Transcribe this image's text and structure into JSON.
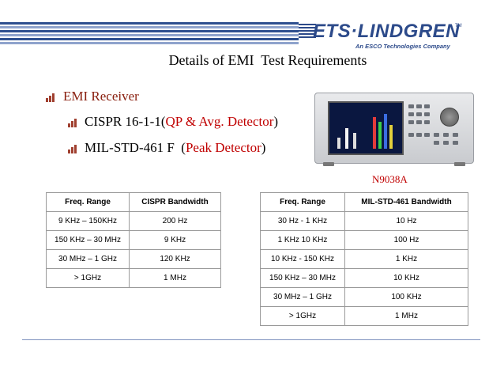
{
  "header": {
    "logo_text": "ETS·LINDGREN",
    "logo_tm": "TM",
    "logo_subtitle": "An ESCO Technologies Company",
    "colors": {
      "brand_blue": "#2c4a8a",
      "accent_red": "#c00000"
    }
  },
  "slide": {
    "title": "Details of EMI  Test Requirements",
    "bullet1": "EMI Receiver",
    "bullet2_prefix": "CISPR 16-1-1(",
    "bullet2_highlight": "QP & Avg. Detector",
    "bullet2_suffix": ")",
    "bullet3_prefix": "MIL-STD-461 F  (",
    "bullet3_highlight": "Peak Detector",
    "bullet3_suffix": ")",
    "model": "N9038A"
  },
  "cispr_table": {
    "headers": [
      "Freq. Range",
      "CISPR Bandwidth"
    ],
    "rows": [
      [
        "9 KHz – 150KHz",
        "200 Hz"
      ],
      [
        "150 KHz – 30 MHz",
        "9 KHz"
      ],
      [
        "30 MHz – 1 GHz",
        "120 KHz"
      ],
      [
        "> 1GHz",
        "1 MHz"
      ]
    ]
  },
  "mil_table": {
    "headers": [
      "Freq. Range",
      "MIL-STD-461 Bandwidth"
    ],
    "rows": [
      [
        "30 Hz - 1 KHz",
        "10 Hz"
      ],
      [
        "1 KHz 10 KHz",
        "100 Hz"
      ],
      [
        "10 KHz - 150 KHz",
        "1 KHz"
      ],
      [
        "150 KHz – 30 MHz",
        "10 KHz"
      ],
      [
        "30 MHz – 1 GHz",
        "100 KHz"
      ],
      [
        "> 1GHz",
        "1 MHz"
      ]
    ]
  }
}
